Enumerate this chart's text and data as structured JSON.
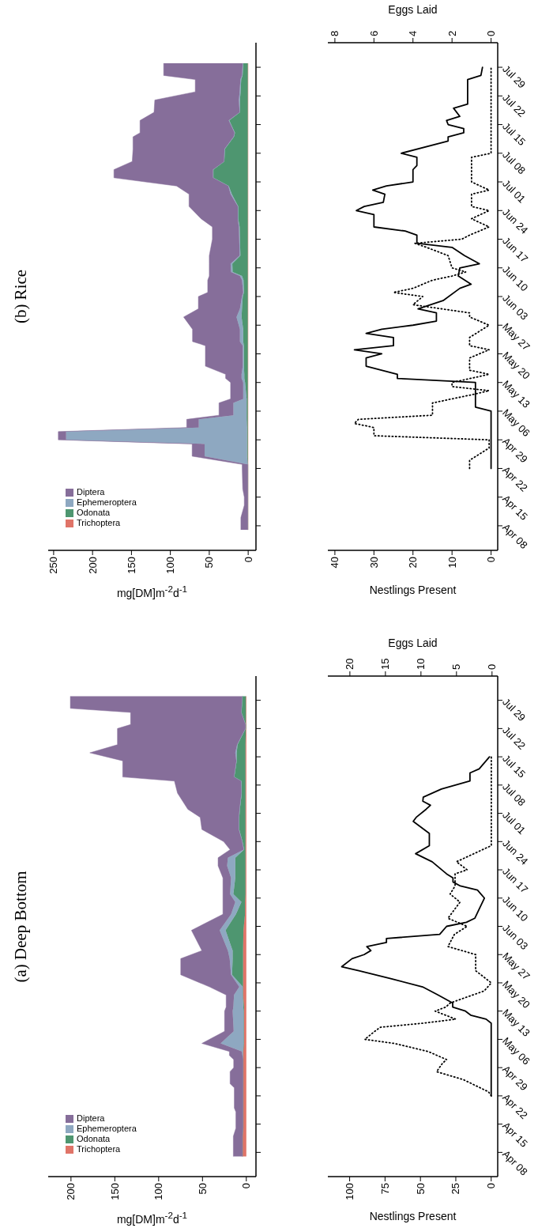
{
  "chart_data": [
    {
      "type": "area",
      "orientation": "horizontal",
      "title": "(b) Rice",
      "xlabel": "mg[DM]m$^{-2}$d$^{-1}$",
      "stacked": true,
      "legend": "bottom left",
      "tick_labels": "x",
      "x": [
        "--04-07",
        "--04-10",
        "--04-13",
        "--04-15",
        "--04-17",
        "--04-22",
        "--04-23",
        "--04-25",
        "--04-28",
        "--04-29",
        "--05-01",
        "--05-02",
        "--05-04",
        "--05-05",
        "--05-08",
        "--05-09",
        "--05-13",
        "--05-14",
        "--05-15",
        "--05-17",
        "--05-22",
        "--05-23",
        "--05-26",
        "--05-29",
        "--05-31",
        "--06-03",
        "--06-04",
        "--06-07",
        "--06-08",
        "--06-09",
        "--06-11",
        "--06-13",
        "--06-17",
        "--06-20",
        "--06-22",
        "--06-25",
        "--06-28",
        "--06-30",
        "--07-02",
        "--07-04",
        "--07-06",
        "--07-09",
        "--07-12",
        "--07-13",
        "--07-16",
        "--07-18",
        "--07-21",
        "--07-23",
        "--07-26",
        "--07-27",
        "--07-30"
      ],
      "ylim": [
        "--04-02",
        "--08-04"
      ],
      "yticks": [
        {
          "value": "--04-08",
          "label": "Apr 08"
        },
        {
          "value": "--04-15",
          "label": "Apr 15"
        },
        {
          "value": "--04-22",
          "label": "Apr 22"
        },
        {
          "value": "--04-29",
          "label": "Apr 29"
        },
        {
          "value": "--05-06",
          "label": "May 06"
        },
        {
          "value": "--05-13",
          "label": "May 13"
        },
        {
          "value": "--05-20",
          "label": "May 20"
        },
        {
          "value": "--05-27",
          "label": "May 27"
        },
        {
          "value": "--06-03",
          "label": "Jun 03"
        },
        {
          "value": "--06-10",
          "label": "Jun 10"
        },
        {
          "value": "--06-17",
          "label": "Jun 17"
        },
        {
          "value": "--06-24",
          "label": "Jun 24"
        },
        {
          "value": "--07-01",
          "label": "Jul 01"
        },
        {
          "value": "--07-08",
          "label": "Jul 08"
        },
        {
          "value": "--07-15",
          "label": "Jul 15"
        },
        {
          "value": "--07-22",
          "label": "Jul 22"
        },
        {
          "value": "--07-29",
          "label": "Jul 29"
        }
      ],
      "xlim": [
        257,
        -10
      ],
      "xticks": [
        0,
        50,
        100,
        150,
        200,
        250
      ],
      "series": [
        {
          "name": "Trichoptera",
          "color": "#e07468",
          "values": [
            0.5,
            0.5,
            0.5,
            0.5,
            0.5,
            0.5,
            0.5,
            0.5,
            0.5,
            0.5,
            0.5,
            0.5,
            0.5,
            0.5,
            0.5,
            0.5,
            0.5,
            0.5,
            0.5,
            0.5,
            0.5,
            0.5,
            0.5,
            0.5,
            0.5,
            0.5,
            0.5,
            0.5,
            0.5,
            0.5,
            0.5,
            0.5,
            0.5,
            0.5,
            0.5,
            0.5,
            0.5,
            0.5,
            0.5,
            0.5,
            0.5,
            0.5,
            0.5,
            0.5,
            0.5,
            0.5,
            0.5,
            0.5,
            0.5,
            0.5,
            0.5
          ]
        },
        {
          "name": "Odonata",
          "color": "#4e9670",
          "values": [
            0,
            0,
            0,
            0,
            0,
            0,
            0,
            1,
            1,
            1,
            1,
            1,
            1.5,
            1.5,
            1.5,
            1.5,
            3.5,
            4.5,
            4.5,
            5,
            5,
            5.9,
            5.9,
            8,
            7.5,
            6.5,
            5,
            5.5,
            7.5,
            19.5,
            19.9,
            9.5,
            10.1,
            10.5,
            12.3,
            12.3,
            20.5,
            24.5,
            44.2,
            44.2,
            30.2,
            29.5,
            17.8,
            16.5,
            23.8,
            10.1,
            10.1,
            9.3,
            8.5,
            6.7,
            5.9
          ]
        },
        {
          "name": "Ephemeroptera",
          "color": "#8ea8c1",
          "values": [
            0,
            0,
            0,
            0,
            0,
            0,
            0,
            54.5,
            54.5,
            232.5,
            232.5,
            62,
            61.5,
            17,
            17,
            4.4,
            2.4,
            3.5,
            3.5,
            1.5,
            1.5,
            4.2,
            4.2,
            6.5,
            2.6,
            1,
            0.9,
            2,
            2.6,
            2,
            2.2,
            1,
            0.9,
            1,
            0.5,
            0.5,
            1.6,
            0.5,
            0.5,
            0.5,
            0.3,
            0.5,
            0.5,
            0.5,
            0.7,
            0.4,
            1.4,
            1.2,
            1,
            0.8,
            0.6
          ]
        },
        {
          "name": "Diptera",
          "color": "#866e9a",
          "values": [
            8.9,
            8.9,
            4.5,
            4.5,
            6.5,
            7.2,
            7.2,
            16,
            16,
            10,
            10,
            15.5,
            15.5,
            18.5,
            18.5,
            16.2,
            16.2,
            20.5,
            20.5,
            48,
            48,
            60.9,
            60.9,
            68,
            53.4,
            56,
            45.6,
            44,
            39.4,
            28,
            27.4,
            39,
            34.5,
            34,
            47.2,
            62.7,
            53.4,
            66.5,
            127.3,
            127.3,
            118,
            117.5,
            129.2,
            121.5,
            114,
            110,
            108,
            57,
            58,
            100.6,
            101.6
          ]
        }
      ]
    },
    {
      "type": "line",
      "orientation": "horizontal",
      "xlabel": "Nestlings Present",
      "x2label": "Eggs Laid",
      "ylim": [
        "--04-02",
        "--08-04"
      ],
      "yticks": [
        {
          "value": "--04-08",
          "label": "Apr 08"
        },
        {
          "value": "--04-15",
          "label": "Apr 15"
        },
        {
          "value": "--04-22",
          "label": "Apr 22"
        },
        {
          "value": "--04-29",
          "label": "Apr 29"
        },
        {
          "value": "--05-06",
          "label": "May 06"
        },
        {
          "value": "--05-13",
          "label": "May 13"
        },
        {
          "value": "--05-20",
          "label": "May 20"
        },
        {
          "value": "--05-27",
          "label": "May 27"
        },
        {
          "value": "--06-03",
          "label": "Jun 03"
        },
        {
          "value": "--06-10",
          "label": "Jun 10"
        },
        {
          "value": "--06-17",
          "label": "Jun 17"
        },
        {
          "value": "--06-24",
          "label": "Jun 24"
        },
        {
          "value": "--07-01",
          "label": "Jul 01"
        },
        {
          "value": "--07-08",
          "label": "Jul 08"
        },
        {
          "value": "--07-15",
          "label": "Jul 15"
        },
        {
          "value": "--07-22",
          "label": "Jul 22"
        },
        {
          "value": "--07-29",
          "label": "Jul 29"
        }
      ],
      "xlim": [
        41.8,
        -1.7
      ],
      "xticks": [
        0,
        10,
        20,
        30,
        40
      ],
      "x2lim": [
        8.36,
        -0.34
      ],
      "x2ticks": [
        0,
        2,
        4,
        6,
        8
      ],
      "series": [
        {
          "color": "#000000",
          "line_style": "solid",
          "x": [
            "--04-22",
            "--05-06",
            "--05-07",
            "--05-13",
            "--05-14",
            "--05-15",
            "--05-17",
            "--05-19",
            "--05-20",
            "--05-21",
            "--05-22",
            "--05-24",
            "--05-25",
            "--05-26",
            "--05-27",
            "--05-28",
            "--05-30",
            "--05-31",
            "--06-02",
            "--06-05",
            "--06-06",
            "--06-08",
            "--06-10",
            "--06-11",
            "--06-13",
            "--06-15",
            "--06-16",
            "--06-18",
            "--06-19",
            "--06-20",
            "--06-23",
            "--06-24",
            "--06-25",
            "--06-26",
            "--06-28",
            "--06-29",
            "--06-30",
            "--07-01",
            "--07-04",
            "--07-05",
            "--07-07",
            "--07-08",
            "--07-11",
            "--07-12",
            "--07-13",
            "--07-14",
            "--07-15",
            "--07-16",
            "--07-17",
            "--07-19",
            "--07-20",
            "--07-26",
            "--07-27",
            "--07-29"
          ],
          "values": [
            0,
            0,
            4,
            4,
            24,
            24,
            32,
            32,
            28,
            35,
            25,
            25,
            32,
            28,
            20,
            14,
            14,
            18.7,
            12.3,
            8,
            5.1,
            8.4,
            8,
            3,
            6.8,
            10,
            19,
            19,
            22,
            30,
            30,
            34.5,
            32.5,
            27.6,
            27.2,
            30.3,
            26.8,
            20,
            20,
            19,
            19,
            23,
            11,
            11,
            7,
            7,
            11,
            11.4,
            8,
            9.6,
            6,
            6,
            2.6,
            2.2
          ]
        },
        {
          "color": "#000000",
          "line_style": "dotted",
          "axis": "x2",
          "x": [
            "--04-22",
            "--04-24",
            "--04-27",
            "--04-29",
            "--04-30",
            "--05-02",
            "--05-03",
            "--05-04",
            "--05-05",
            "--05-08",
            "--05-09",
            "--05-10",
            "--05-11",
            "--05-12",
            "--05-13",
            "--05-15",
            "--05-16",
            "--05-19",
            "--05-21",
            "--05-22",
            "--05-24",
            "--05-27",
            "--05-29",
            "--05-30",
            "--06-01",
            "--06-03",
            "--06-04",
            "--06-05",
            "--06-07",
            "--06-08",
            "--06-09",
            "--06-10",
            "--06-13",
            "--06-15",
            "--06-16",
            "--06-17",
            "--06-18",
            "--06-20",
            "--06-22",
            "--06-24",
            "--06-25",
            "--06-28",
            "--06-29",
            "--07-01",
            "--07-07",
            "--07-08",
            "--07-29"
          ],
          "values": [
            1.1,
            1.1,
            0.1,
            0.1,
            6.0,
            6.0,
            7.0,
            6.8,
            3.0,
            3.0,
            2.0,
            1.0,
            0.1,
            2.0,
            2.0,
            0.1,
            1.1,
            1.1,
            0.1,
            1.1,
            1.1,
            0.1,
            1.1,
            1.1,
            4.0,
            3.5,
            5.0,
            4.0,
            3.0,
            2.0,
            1.3,
            2.0,
            2.2,
            3.3,
            3.9,
            1.5,
            1.1,
            0.1,
            1.0,
            0.1,
            1.0,
            1.0,
            0.1,
            1.0,
            1.0,
            0,
            0
          ]
        }
      ]
    },
    {
      "type": "area",
      "orientation": "horizontal",
      "title": "(a) Deep Bottom",
      "xlabel": "mg[DM]m$^{-2}$d$^{-1}$",
      "stacked": true,
      "legend": "bottom left",
      "tick_labels": "x",
      "x": [
        "--04-07",
        "--04-12",
        "--04-14",
        "--04-18",
        "--04-19",
        "--04-24",
        "--04-25",
        "--04-28",
        "--04-29",
        "--05-01",
        "--05-02",
        "--05-03",
        "--05-05",
        "--05-08",
        "--05-13",
        "--05-14",
        "--05-17",
        "--05-19",
        "--05-22",
        "--05-26",
        "--05-28",
        "--06-02",
        "--06-06",
        "--06-09",
        "--06-11",
        "--06-15",
        "--06-18",
        "--06-20",
        "--06-22",
        "--06-24",
        "--06-27",
        "--06-30",
        "--07-02",
        "--07-06",
        "--07-09",
        "--07-10",
        "--07-14",
        "--07-16",
        "--07-18",
        "--07-22",
        "--07-23",
        "--07-26",
        "--07-27",
        "--07-30"
      ],
      "ylim": [
        "--04-02",
        "--08-04"
      ],
      "yticks": [
        {
          "value": "--04-08",
          "label": "Apr 08"
        },
        {
          "value": "--04-15",
          "label": "Apr 15"
        },
        {
          "value": "--04-22",
          "label": "Apr 22"
        },
        {
          "value": "--04-29",
          "label": "Apr 29"
        },
        {
          "value": "--05-06",
          "label": "May 06"
        },
        {
          "value": "--05-13",
          "label": "May 13"
        },
        {
          "value": "--05-20",
          "label": "May 20"
        },
        {
          "value": "--05-27",
          "label": "May 27"
        },
        {
          "value": "--06-03",
          "label": "Jun 03"
        },
        {
          "value": "--06-10",
          "label": "Jun 10"
        },
        {
          "value": "--06-17",
          "label": "Jun 17"
        },
        {
          "value": "--06-24",
          "label": "Jun 24"
        },
        {
          "value": "--07-01",
          "label": "Jul 01"
        },
        {
          "value": "--07-08",
          "label": "Jul 08"
        },
        {
          "value": "--07-15",
          "label": "Jul 15"
        },
        {
          "value": "--07-22",
          "label": "Jul 22"
        },
        {
          "value": "--07-29",
          "label": "Jul 29"
        }
      ],
      "xlim": [
        226,
        -11
      ],
      "xticks": [
        0,
        50,
        100,
        150,
        200
      ],
      "series": [
        {
          "name": "Trichoptera",
          "color": "#e07468",
          "values": [
            4.4,
            4.4,
            3.7,
            3.7,
            3.7,
            3.7,
            3.7,
            3.7,
            3.7,
            3.7,
            3.7,
            3.7,
            2.6,
            2.6,
            2.6,
            2.6,
            3.7,
            3.7,
            3.7,
            3.7,
            3.7,
            3.3,
            1.5,
            1.5,
            1,
            1,
            1,
            1,
            1,
            1,
            1,
            1,
            1,
            1,
            1,
            1,
            1,
            1,
            1,
            0.5,
            0.5,
            0.5,
            0.5,
            0.5
          ]
        },
        {
          "name": "Odonata",
          "color": "#4e9670",
          "values": [
            0,
            0,
            0,
            0,
            0,
            0,
            0,
            0,
            0,
            0,
            0,
            0,
            0.4,
            0.4,
            0.4,
            0.9,
            0.3,
            0.3,
            12.6,
            11.9,
            11.9,
            20.4,
            10.4,
            4.1,
            13.8,
            11.6,
            11.6,
            11.6,
            1.6,
            3.4,
            7.1,
            7.1,
            6.4,
            4.2,
            4.6,
            12.7,
            10,
            10,
            9,
            0.2,
            0.2,
            5.1,
            4.7,
            3.9
          ]
        },
        {
          "name": "Ephemeroptera",
          "color": "#8ea8c1",
          "values": [
            0,
            0,
            0,
            0,
            0,
            0,
            0,
            0,
            0,
            0,
            0.7,
            1.3,
            26.3,
            11.4,
            12.6,
            11.3,
            10,
            4,
            1.1,
            3.4,
            5.4,
            6.7,
            5.5,
            7,
            3.7,
            4.8,
            9.3,
            8.4,
            0.4,
            0.4,
            0.4,
            0.4,
            0.4,
            0.4,
            0.4,
            0.3,
            0.4,
            1.6,
            0.5,
            0.3,
            0.3,
            0.2,
            0.2,
            0.2
          ]
        },
        {
          "name": "Diptera",
          "color": "#866e9a",
          "values": [
            10.4,
            10.4,
            8.2,
            8.2,
            10,
            10,
            14.8,
            14.8,
            10.7,
            10.7,
            14.9,
            14.3,
            21.4,
            10.4,
            9.2,
            8.2,
            9,
            34,
            57.4,
            55.8,
            29.7,
            32.2,
            9.3,
            14.1,
            8.2,
            9.3,
            10.3,
            11.2,
            15.5,
            21.1,
            42.2,
            44.1,
            58.9,
            72.9,
            76,
            127,
            129.6,
            165.9,
            136.5,
            146,
            131,
            126.2,
            195.3,
            196.1
          ]
        }
      ]
    },
    {
      "type": "line",
      "orientation": "horizontal",
      "xlabel": "Nestlings Present",
      "x2label": "Eggs Laid",
      "ylim": [
        "--04-02",
        "--08-04"
      ],
      "yticks": [
        {
          "value": "--04-08",
          "label": "Apr 08"
        },
        {
          "value": "--04-15",
          "label": "Apr 15"
        },
        {
          "value": "--04-22",
          "label": "Apr 22"
        },
        {
          "value": "--04-29",
          "label": "Apr 29"
        },
        {
          "value": "--05-06",
          "label": "May 06"
        },
        {
          "value": "--05-13",
          "label": "May 13"
        },
        {
          "value": "--05-20",
          "label": "May 20"
        },
        {
          "value": "--05-27",
          "label": "May 27"
        },
        {
          "value": "--06-03",
          "label": "Jun 03"
        },
        {
          "value": "--06-10",
          "label": "Jun 10"
        },
        {
          "value": "--06-17",
          "label": "Jun 17"
        },
        {
          "value": "--06-24",
          "label": "Jun 24"
        },
        {
          "value": "--07-01",
          "label": "Jul 01"
        },
        {
          "value": "--07-08",
          "label": "Jul 08"
        },
        {
          "value": "--07-15",
          "label": "Jul 15"
        },
        {
          "value": "--07-22",
          "label": "Jul 22"
        },
        {
          "value": "--07-29",
          "label": "Jul 29"
        }
      ],
      "xlim": [
        115.4,
        -4.6
      ],
      "xticks": [
        0,
        25,
        50,
        75,
        100
      ],
      "x2lim": [
        23.1,
        -0.8
      ],
      "x2ticks": [
        0,
        5,
        10,
        15,
        20
      ],
      "series": [
        {
          "color": "#000000",
          "line_style": "solid",
          "x": [
            "--04-22",
            "--05-10",
            "--05-11",
            "--05-12",
            "--05-13",
            "--05-14",
            "--05-15",
            "--05-17",
            "--05-19",
            "--05-21",
            "--05-23",
            "--05-24",
            "--05-26",
            "--05-27",
            "--05-28",
            "--05-29",
            "--05-30",
            "--05-31",
            "--06-01",
            "--06-03",
            "--06-04",
            "--06-05",
            "--06-10",
            "--06-12",
            "--06-13",
            "--06-14",
            "--06-15",
            "--06-16",
            "--06-19",
            "--06-21",
            "--06-23",
            "--06-26",
            "--06-29",
            "--06-30",
            "--07-02",
            "--07-03",
            "--07-04",
            "--07-05",
            "--07-07",
            "--07-09",
            "--07-11",
            "--07-12",
            "--07-15"
          ],
          "values": [
            0,
            0,
            3.6,
            14.5,
            18.2,
            27.2,
            27.2,
            37.6,
            48.5,
            70.4,
            93.5,
            105.6,
            98.3,
            89.8,
            85,
            87.9,
            74,
            74,
            36.4,
            31.5,
            17.5,
            11.6,
            4.8,
            9.7,
            21.8,
            27,
            27,
            31.5,
            41.7,
            53.4,
            43.7,
            43.7,
            55.1,
            53,
            46,
            42.9,
            48.3,
            48,
            35.2,
            15,
            15,
            8.5,
            1.2
          ]
        },
        {
          "color": "#000000",
          "line_style": "dotted",
          "axis": "x2",
          "x": [
            "--04-22",
            "--04-23",
            "--04-26",
            "--04-28",
            "--04-30",
            "--05-01",
            "--05-03",
            "--05-05",
            "--05-06",
            "--05-08",
            "--05-09",
            "--05-10",
            "--05-11",
            "--05-13",
            "--05-14",
            "--05-15",
            "--05-18",
            "--05-20",
            "--05-23",
            "--05-27",
            "--05-29",
            "--06-01",
            "--06-03",
            "--06-05",
            "--06-09",
            "--06-11",
            "--06-13",
            "--06-16",
            "--06-17",
            "--06-19",
            "--06-23",
            "--07-15"
          ],
          "values": [
            0.1,
            0.5,
            4.0,
            7.8,
            7.0,
            6.4,
            9.0,
            13.8,
            17.9,
            16.5,
            15.7,
            9.7,
            5.1,
            8.0,
            6.5,
            5.9,
            1.1,
            0.1,
            2.3,
            2.3,
            6.2,
            5.3,
            3.5,
            6.2,
            4.5,
            5.9,
            5.2,
            5.2,
            3.5,
            5.0,
            0.1,
            0.1
          ]
        }
      ]
    }
  ]
}
